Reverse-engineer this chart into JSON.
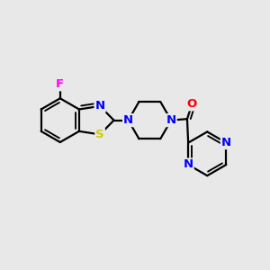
{
  "bg_color": "#e8e8e8",
  "bond_color": "#000000",
  "N_color": "#0000ff",
  "S_color": "#cccc00",
  "F_color": "#ff00ff",
  "O_color": "#ff0000",
  "bond_width": 1.6,
  "figsize": [
    3.0,
    3.0
  ],
  "dpi": 100,
  "xlim": [
    0,
    10
  ],
  "ylim": [
    0,
    10
  ]
}
